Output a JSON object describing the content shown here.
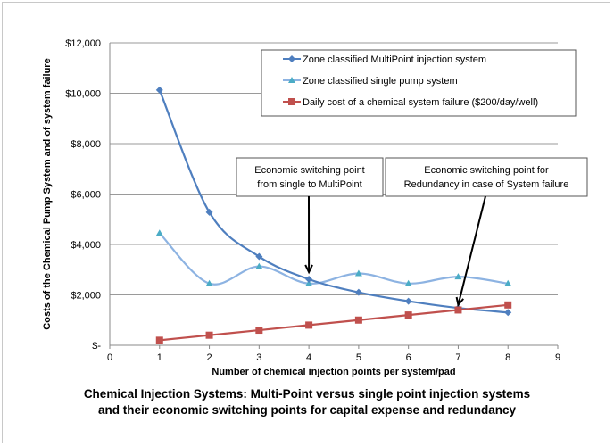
{
  "chart_data": {
    "type": "line",
    "title": "",
    "caption_lines": [
      "Chemical Injection Systems: Multi-Point versus single point injection systems",
      "and their economic switching points for capital expense and redundancy"
    ],
    "xlabel": "Number of chemical injection points per system/pad",
    "ylabel": "Costs of the Chemical Pump System and of system failure",
    "xlim": [
      0,
      9
    ],
    "ylim": [
      0,
      12000
    ],
    "x_ticks": [
      "0",
      "1",
      "2",
      "3",
      "4",
      "5",
      "6",
      "7",
      "8",
      "9"
    ],
    "y_ticks": [
      {
        "value": 0,
        "label": "$-"
      },
      {
        "value": 2000,
        "label": "$2,000"
      },
      {
        "value": 4000,
        "label": "$4,000"
      },
      {
        "value": 6000,
        "label": "$6,000"
      },
      {
        "value": 8000,
        "label": "$8,000"
      },
      {
        "value": 10000,
        "label": "$10,000"
      },
      {
        "value": 12000,
        "label": "$12,000"
      }
    ],
    "grid": "horizontal",
    "legend_position": "top-right",
    "x": [
      1,
      2,
      3,
      4,
      5,
      6,
      7,
      8
    ],
    "series": [
      {
        "name": "Zone classified MultiPoint injection system",
        "color": "#4f7fbf",
        "marker": "diamond",
        "smooth": true,
        "values": [
          10130,
          5280,
          3520,
          2620,
          2100,
          1750,
          1480,
          1300
        ]
      },
      {
        "name": "Zone classified single pump system",
        "color": "#8db3e2",
        "marker_color": "#4bacc6",
        "marker": "triangle",
        "smooth": true,
        "values": [
          4450,
          2450,
          3130,
          2450,
          2850,
          2450,
          2720,
          2450
        ]
      },
      {
        "name": "Daily cost of a chemical system failure ($200/day/well)",
        "color": "#c0504d",
        "marker": "square",
        "smooth": false,
        "values": [
          200,
          400,
          600,
          800,
          1000,
          1200,
          1400,
          1600
        ]
      }
    ],
    "annotations": [
      {
        "lines": [
          "Economic switching point",
          "from single to MultiPoint"
        ],
        "points_to": {
          "x": 4,
          "y": 2900
        }
      },
      {
        "lines": [
          "Economic switching point for",
          "Redundancy in case of System failure"
        ],
        "points_to": {
          "x": 7,
          "y": 1600
        }
      }
    ]
  }
}
